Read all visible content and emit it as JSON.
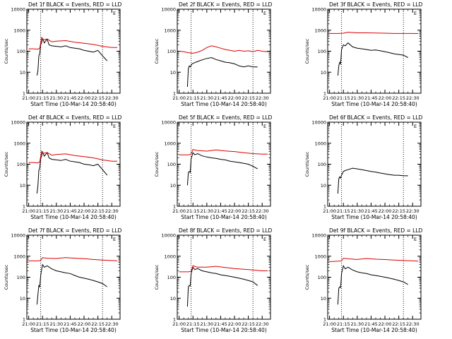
{
  "chart_data": [
    {
      "type": "line",
      "title": "Det 1f BLACK = Events, RED = LLD",
      "xlabel": "Start Time (10-Mar-14 20:58:40)",
      "ylabel": "Counts/sec",
      "x_ticks": [
        "21:00",
        "21:15",
        "21:30",
        "21:45",
        "22:00",
        "22:15",
        "22:30"
      ],
      "y_ticks": [
        "1",
        "10",
        "100",
        "1000",
        "10000"
      ],
      "ylim": [
        1,
        10000
      ],
      "y_scale": "log",
      "top_right_mark": "E",
      "dotted_lines_at": [
        "21:13",
        "22:20"
      ],
      "series": [
        {
          "color": "#000000",
          "x": [
            "21:09",
            "21:10",
            "21:11",
            "21:12",
            "21:13",
            "21:14",
            "21:15",
            "21:17",
            "21:20",
            "21:22",
            "21:25",
            "21:30",
            "21:35",
            "21:40",
            "21:45",
            "21:50",
            "21:55",
            "22:00",
            "22:05",
            "22:10",
            "22:15",
            "22:20",
            "22:25"
          ],
          "values": [
            7,
            12,
            60,
            80,
            200,
            260,
            400,
            250,
            380,
            200,
            180,
            170,
            160,
            180,
            150,
            140,
            130,
            110,
            100,
            90,
            110,
            60,
            35
          ]
        },
        {
          "color": "#dd0000",
          "x": [
            "21:00",
            "21:05",
            "21:10",
            "21:12",
            "21:14",
            "21:16",
            "21:20",
            "21:25",
            "21:30",
            "21:40",
            "21:50",
            "22:00",
            "22:10",
            "22:20",
            "22:30",
            "22:36"
          ],
          "values": [
            130,
            130,
            125,
            140,
            450,
            350,
            380,
            280,
            300,
            320,
            270,
            240,
            210,
            170,
            150,
            150
          ]
        }
      ]
    },
    {
      "type": "line",
      "title": "Det 2f BLACK = Events, RED = LLD",
      "xlabel": "Start Time (10-Mar-14 20:58:40)",
      "ylabel": "Counts/sec",
      "x_ticks": [
        "21:00",
        "21:15",
        "21:30",
        "21:45",
        "22:00",
        "22:15",
        "22:30"
      ],
      "y_ticks": [
        "1",
        "10",
        "100",
        "1000",
        "10000"
      ],
      "ylim": [
        1,
        10000
      ],
      "y_scale": "log",
      "top_right_mark": "E",
      "dotted_lines_at": [
        "21:13",
        "22:20"
      ],
      "series": [
        {
          "color": "#000000",
          "x": [
            "21:09",
            "21:10",
            "21:11",
            "21:12",
            "21:14",
            "21:18",
            "21:22",
            "21:26",
            "21:30",
            "21:35",
            "21:40",
            "21:45",
            "21:50",
            "21:55",
            "22:00",
            "22:05",
            "22:10",
            "22:15",
            "22:20",
            "22:25"
          ],
          "values": [
            2,
            15,
            20,
            18,
            25,
            30,
            35,
            40,
            45,
            50,
            40,
            35,
            30,
            28,
            25,
            20,
            18,
            20,
            18,
            18
          ]
        },
        {
          "color": "#dd0000",
          "x": [
            "21:00",
            "21:05",
            "21:10",
            "21:15",
            "21:20",
            "21:25",
            "21:30",
            "21:35",
            "21:40",
            "21:45",
            "21:50",
            "21:55",
            "22:00",
            "22:05",
            "22:10",
            "22:15",
            "22:20",
            "22:25",
            "22:30",
            "22:36"
          ],
          "values": [
            100,
            95,
            85,
            80,
            90,
            110,
            150,
            180,
            160,
            140,
            120,
            110,
            100,
            110,
            100,
            105,
            95,
            110,
            100,
            95
          ]
        }
      ]
    },
    {
      "type": "line",
      "title": "Det 3f BLACK = Events, RED = LLD",
      "xlabel": "Start Time (10-Mar-14 20:58:40)",
      "ylabel": "Counts/sec",
      "x_ticks": [
        "21:00",
        "21:15",
        "21:30",
        "21:45",
        "22:00",
        "22:15",
        "22:30"
      ],
      "y_ticks": [
        "1",
        "10",
        "100",
        "1000",
        "10000"
      ],
      "ylim": [
        1,
        10000
      ],
      "y_scale": "log",
      "top_right_mark": "E",
      "dotted_lines_at": [
        "21:13",
        "22:20"
      ],
      "series": [
        {
          "color": "#000000",
          "x": [
            "21:09",
            "21:10",
            "21:11",
            "21:12",
            "21:13",
            "21:15",
            "21:17",
            "21:20",
            "21:25",
            "21:30",
            "21:35",
            "21:40",
            "21:45",
            "21:50",
            "21:55",
            "22:00",
            "22:05",
            "22:10",
            "22:15",
            "22:20",
            "22:25"
          ],
          "values": [
            7,
            20,
            30,
            25,
            120,
            200,
            180,
            250,
            160,
            140,
            130,
            120,
            110,
            115,
            105,
            95,
            85,
            75,
            70,
            65,
            50
          ]
        },
        {
          "color": "#dd0000",
          "x": [
            "21:00",
            "21:10",
            "21:15",
            "21:20",
            "21:30",
            "21:40",
            "21:50",
            "22:00",
            "22:10",
            "22:20",
            "22:30",
            "22:36"
          ],
          "values": [
            700,
            700,
            720,
            800,
            750,
            750,
            730,
            720,
            700,
            700,
            700,
            690
          ]
        }
      ]
    },
    {
      "type": "line",
      "title": "Det 4f BLACK = Events, RED = LLD",
      "xlabel": "Start Time (10-Mar-14 20:58:40)",
      "ylabel": "Counts/sec",
      "x_ticks": [
        "21:00",
        "21:15",
        "21:30",
        "21:45",
        "22:00",
        "22:15",
        "22:30"
      ],
      "y_ticks": [
        "1",
        "10",
        "100",
        "1000",
        "10000"
      ],
      "ylim": [
        1,
        10000
      ],
      "y_scale": "log",
      "top_right_mark": "E",
      "dotted_lines_at": [
        "21:13",
        "22:20"
      ],
      "series": [
        {
          "color": "#000000",
          "x": [
            "21:09",
            "21:10",
            "21:11",
            "21:12",
            "21:13",
            "21:14",
            "21:15",
            "21:17",
            "21:20",
            "21:22",
            "21:25",
            "21:30",
            "21:35",
            "21:40",
            "21:45",
            "21:50",
            "21:55",
            "22:00",
            "22:05",
            "22:10",
            "22:15",
            "22:20",
            "22:25"
          ],
          "values": [
            4,
            10,
            50,
            70,
            180,
            250,
            380,
            240,
            360,
            200,
            170,
            160,
            150,
            170,
            140,
            130,
            120,
            100,
            95,
            85,
            100,
            55,
            30
          ]
        },
        {
          "color": "#dd0000",
          "x": [
            "21:00",
            "21:05",
            "21:10",
            "21:12",
            "21:14",
            "21:16",
            "21:20",
            "21:25",
            "21:30",
            "21:40",
            "21:50",
            "22:00",
            "22:10",
            "22:20",
            "22:30",
            "22:36"
          ],
          "values": [
            120,
            120,
            115,
            130,
            420,
            330,
            360,
            270,
            290,
            310,
            260,
            230,
            200,
            160,
            140,
            140
          ]
        }
      ]
    },
    {
      "type": "line",
      "title": "Det 5f BLACK = Events, RED = LLD",
      "xlabel": "Start Time (10-Mar-14 20:58:40)",
      "ylabel": "Counts/sec",
      "x_ticks": [
        "21:00",
        "21:15",
        "21:30",
        "21:45",
        "22:00",
        "22:15",
        "22:30"
      ],
      "y_ticks": [
        "1",
        "10",
        "100",
        "1000",
        "10000"
      ],
      "ylim": [
        1,
        10000
      ],
      "y_scale": "log",
      "top_right_mark": "E",
      "dotted_lines_at": [
        "21:13",
        "22:20"
      ],
      "series": [
        {
          "color": "#000000",
          "x": [
            "21:09",
            "21:10",
            "21:11",
            "21:12",
            "21:13",
            "21:15",
            "21:17",
            "21:20",
            "21:25",
            "21:30",
            "21:35",
            "21:40",
            "21:45",
            "21:50",
            "21:55",
            "22:00",
            "22:05",
            "22:10",
            "22:15",
            "22:20",
            "22:25"
          ],
          "values": [
            10,
            40,
            45,
            40,
            180,
            350,
            280,
            320,
            250,
            220,
            200,
            190,
            170,
            160,
            140,
            130,
            120,
            110,
            100,
            80,
            60
          ]
        },
        {
          "color": "#dd0000",
          "x": [
            "21:00",
            "21:10",
            "21:13",
            "21:15",
            "21:20",
            "21:30",
            "21:40",
            "21:50",
            "22:00",
            "22:10",
            "22:20",
            "22:30",
            "22:36"
          ],
          "values": [
            280,
            280,
            300,
            500,
            450,
            420,
            480,
            430,
            400,
            350,
            320,
            300,
            300
          ]
        }
      ]
    },
    {
      "type": "line",
      "title": "Det 6f BLACK = Events, RED = LLD",
      "xlabel": "Start Time (10-Mar-14 20:58:40)",
      "ylabel": "Counts/sec",
      "x_ticks": [
        "21:00",
        "21:15",
        "21:30",
        "21:45",
        "22:00",
        "22:15",
        "22:30"
      ],
      "y_ticks": [
        "1",
        "10",
        "100",
        "1000",
        "10000"
      ],
      "ylim": [
        1,
        10000
      ],
      "y_scale": "log",
      "top_right_mark": "E",
      "dotted_lines_at": [
        "21:13",
        "22:20"
      ],
      "series": [
        {
          "color": "#000000",
          "x": [
            "21:09",
            "21:10",
            "21:11",
            "21:12",
            "21:13",
            "21:15",
            "21:17",
            "21:20",
            "21:25",
            "21:30",
            "21:35",
            "21:40",
            "21:45",
            "21:50",
            "21:55",
            "22:00",
            "22:05",
            "22:10",
            "22:15",
            "22:20",
            "22:25"
          ],
          "values": [
            4,
            20,
            25,
            22,
            30,
            45,
            50,
            55,
            65,
            60,
            55,
            50,
            45,
            42,
            38,
            35,
            32,
            30,
            30,
            28,
            28
          ]
        }
      ]
    },
    {
      "type": "line",
      "title": "Det 7f BLACK = Events, RED = LLD",
      "xlabel": "Start Time (10-Mar-14 20:58:40)",
      "ylabel": "Counts/sec",
      "x_ticks": [
        "21:00",
        "21:15",
        "21:30",
        "21:45",
        "22:00",
        "22:15",
        "22:30"
      ],
      "y_ticks": [
        "1",
        "10",
        "100",
        "1000",
        "10000"
      ],
      "ylim": [
        1,
        10000
      ],
      "y_scale": "log",
      "top_right_mark": "E",
      "dotted_lines_at": [
        "21:13",
        "22:20"
      ],
      "series": [
        {
          "color": "#000000",
          "x": [
            "21:09",
            "21:10",
            "21:11",
            "21:12",
            "21:13",
            "21:15",
            "21:17",
            "21:20",
            "21:25",
            "21:30",
            "21:35",
            "21:40",
            "21:45",
            "21:50",
            "21:55",
            "22:00",
            "22:05",
            "22:10",
            "22:15",
            "22:20",
            "22:25"
          ],
          "values": [
            5,
            15,
            40,
            35,
            120,
            400,
            300,
            350,
            250,
            200,
            180,
            160,
            150,
            120,
            100,
            90,
            80,
            70,
            60,
            50,
            35
          ]
        },
        {
          "color": "#dd0000",
          "x": [
            "21:00",
            "21:10",
            "21:13",
            "21:15",
            "21:20",
            "21:30",
            "21:40",
            "21:50",
            "22:00",
            "22:10",
            "22:20",
            "22:30",
            "22:36"
          ],
          "values": [
            600,
            600,
            620,
            850,
            800,
            780,
            850,
            800,
            760,
            700,
            650,
            620,
            600
          ]
        }
      ]
    },
    {
      "type": "line",
      "title": "Det 8f BLACK = Events, RED = LLD",
      "xlabel": "Start Time (10-Mar-14 20:58:40)",
      "ylabel": "Counts/sec",
      "x_ticks": [
        "21:00",
        "21:15",
        "21:30",
        "21:45",
        "22:00",
        "22:15",
        "22:30"
      ],
      "y_ticks": [
        "1",
        "10",
        "100",
        "1000",
        "10000"
      ],
      "ylim": [
        1,
        10000
      ],
      "y_scale": "log",
      "top_right_mark": "E",
      "dotted_lines_at": [
        "21:13",
        "22:20"
      ],
      "series": [
        {
          "color": "#000000",
          "x": [
            "21:09",
            "21:10",
            "21:11",
            "21:12",
            "21:13",
            "21:15",
            "21:17",
            "21:20",
            "21:25",
            "21:30",
            "21:35",
            "21:40",
            "21:45",
            "21:50",
            "21:55",
            "22:00",
            "22:05",
            "22:10",
            "22:15",
            "22:20",
            "22:25"
          ],
          "values": [
            4,
            35,
            40,
            38,
            150,
            300,
            230,
            260,
            200,
            180,
            160,
            150,
            130,
            120,
            110,
            100,
            90,
            80,
            70,
            60,
            40
          ]
        },
        {
          "color": "#dd0000",
          "x": [
            "21:00",
            "21:10",
            "21:13",
            "21:15",
            "21:20",
            "21:30",
            "21:40",
            "21:50",
            "22:00",
            "22:10",
            "22:20",
            "22:30",
            "22:36"
          ],
          "values": [
            180,
            180,
            190,
            350,
            300,
            300,
            330,
            290,
            260,
            240,
            220,
            200,
            200
          ]
        }
      ]
    },
    {
      "type": "line",
      "title": "Det 9f BLACK = Events, RED = LLD",
      "xlabel": "Start Time (10-Mar-14 20:58:40)",
      "ylabel": "Counts/sec",
      "x_ticks": [
        "21:00",
        "21:15",
        "21:30",
        "21:45",
        "22:00",
        "22:15",
        "22:30"
      ],
      "y_ticks": [
        "1",
        "10",
        "100",
        "1000",
        "10000"
      ],
      "ylim": [
        1,
        10000
      ],
      "y_scale": "log",
      "top_right_mark": "E",
      "dotted_lines_at": [
        "21:13",
        "22:20"
      ],
      "series": [
        {
          "color": "#000000",
          "x": [
            "21:09",
            "21:10",
            "21:11",
            "21:12",
            "21:13",
            "21:15",
            "21:17",
            "21:20",
            "21:25",
            "21:30",
            "21:35",
            "21:40",
            "21:45",
            "21:50",
            "21:55",
            "22:00",
            "22:05",
            "22:10",
            "22:15",
            "22:20",
            "22:25"
          ],
          "values": [
            5,
            30,
            35,
            32,
            150,
            350,
            250,
            300,
            220,
            180,
            160,
            150,
            130,
            120,
            110,
            100,
            90,
            80,
            70,
            60,
            45
          ]
        },
        {
          "color": "#dd0000",
          "x": [
            "21:00",
            "21:10",
            "21:13",
            "21:15",
            "21:20",
            "21:30",
            "21:40",
            "21:50",
            "22:00",
            "22:10",
            "22:20",
            "22:30",
            "22:36"
          ],
          "values": [
            550,
            580,
            600,
            800,
            750,
            700,
            780,
            720,
            690,
            650,
            620,
            600,
            580
          ]
        }
      ]
    }
  ]
}
